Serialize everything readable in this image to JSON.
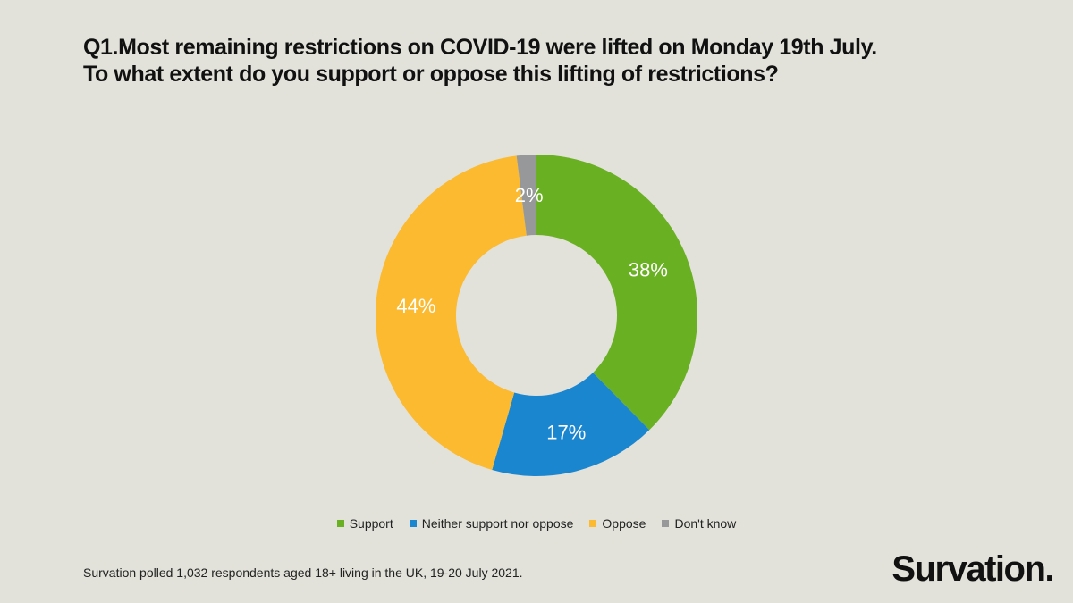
{
  "title": {
    "line1": "Q1.Most remaining restrictions on COVID-19 were lifted on Monday 19th July.",
    "line2": "To what extent do you support or oppose this lifting of restrictions?"
  },
  "chart_data": {
    "type": "pie",
    "subtype": "donut",
    "title": "Q1.Most remaining restrictions on COVID-19 were lifted on Monday 19th July. To what extent do you support or oppose this lifting of restrictions?",
    "categories": [
      "Support",
      "Neither support nor oppose",
      "Oppose",
      "Don't know"
    ],
    "values": [
      38,
      17,
      44,
      2
    ],
    "data_labels": [
      "38%",
      "17%",
      "44%",
      "2%"
    ],
    "colors": [
      "#6ab023",
      "#1b86d0",
      "#fbba30",
      "#97989a"
    ],
    "legend_position": "bottom"
  },
  "footnote": "Survation polled 1,032 respondents aged 18+ living in the UK,  19-20 July 2021.",
  "logo": "Survation."
}
